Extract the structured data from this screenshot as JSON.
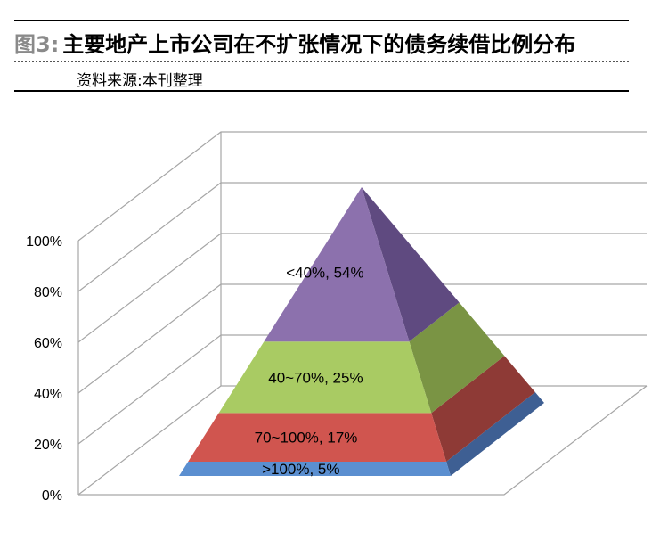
{
  "header": {
    "fig_no": "图3:",
    "title": "主要地产上市公司在不扩张情况下的债务续借比例分布",
    "source": "资料来源:本刊整理"
  },
  "chart_data": {
    "type": "pyramid",
    "title": "主要地产上市公司在不扩张情况下的债务续借比例分布",
    "y_ticks": [
      "0%",
      "20%",
      "40%",
      "60%",
      "80%",
      "100%"
    ],
    "ylim": [
      0,
      100
    ],
    "grid": true,
    "segments": [
      {
        "label": ">100%, 5%",
        "value": 5,
        "front_color": "#5b8fd0",
        "side_color": "#3e5f93"
      },
      {
        "label": "70~100%, 17%",
        "value": 17,
        "front_color": "#d0554f",
        "side_color": "#8e3a36"
      },
      {
        "label": "40~70%, 25%",
        "value": 25,
        "front_color": "#a9cb63",
        "side_color": "#7a9444"
      },
      {
        "label": "<40%, 54%",
        "value": 54,
        "front_color": "#8c71ad",
        "side_color": "#5f4a80"
      }
    ]
  }
}
